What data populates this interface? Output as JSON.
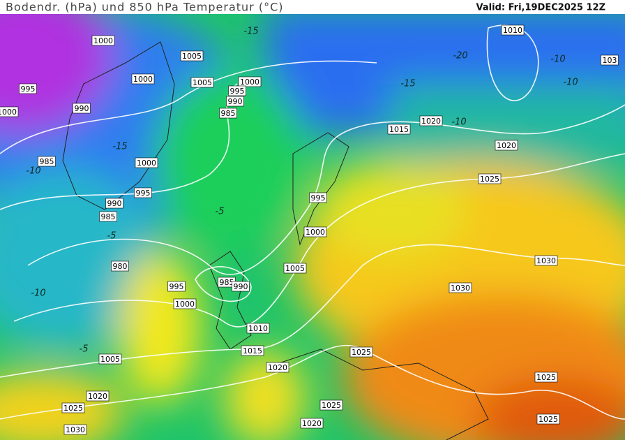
{
  "header": {
    "title": "Bodendr. (hPa) und 850 hPa Temperatur (°C)",
    "valid": "Valid: Fri,19DEC2025 12Z"
  },
  "isobar_labels": [
    "1000",
    "1005",
    "1000",
    "1005",
    "1000",
    "995",
    "990",
    "985",
    "995",
    "990",
    "1000",
    "985",
    "1000",
    "995",
    "990",
    "985",
    "980",
    "995",
    "985",
    "990",
    "1000",
    "995",
    "1000",
    "1005",
    "1010",
    "1015",
    "1020",
    "1005",
    "1020",
    "1025",
    "1030",
    "1010",
    "1015",
    "1020",
    "1020",
    "1025",
    "1030",
    "1030",
    "1025",
    "1025",
    "1020",
    "1025",
    "1025",
    "103"
  ],
  "temperature_labels": [
    "-15",
    "-15",
    "-20",
    "-10",
    "-10",
    "-10",
    "-15",
    "-10",
    "-5",
    "-5",
    "-5",
    "-10"
  ]
}
